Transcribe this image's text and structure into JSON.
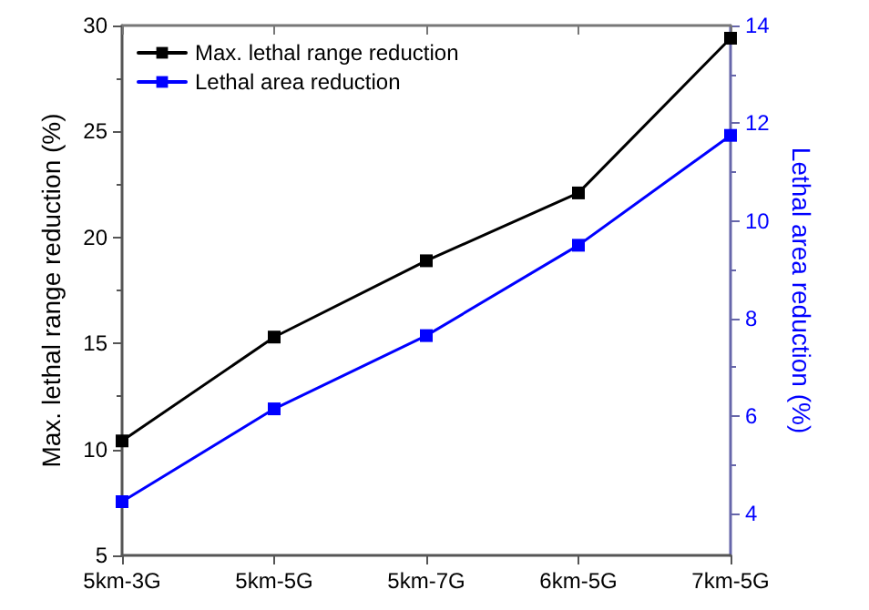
{
  "chart_data": {
    "type": "line",
    "ylabel": "Max. lethal range reduction (%)",
    "y2label": "Lethal area reduction (%)",
    "categories": [
      "5km-3G",
      "5km-5G",
      "5km-7G",
      "6km-5G",
      "7km-5G"
    ],
    "series": [
      {
        "name": "Max. lethal range reduction",
        "color": "#000000",
        "values": [
          10.4,
          15.3,
          18.9,
          22.1,
          29.4
        ]
      },
      {
        "name": "Lethal area reduction",
        "color": "#0000ff",
        "axis": "y2",
        "values": [
          4.25,
          6.15,
          7.65,
          9.5,
          11.75
        ]
      }
    ],
    "ylim": [
      5,
      30
    ],
    "yticks": [
      5,
      10,
      15,
      20,
      25,
      30
    ],
    "y2lim": [
      3.15,
      14
    ],
    "y2ticks": [
      4,
      6,
      8,
      10,
      12,
      14
    ],
    "marker": "square",
    "line_style": "solid",
    "grid": false,
    "legend": "top left"
  }
}
